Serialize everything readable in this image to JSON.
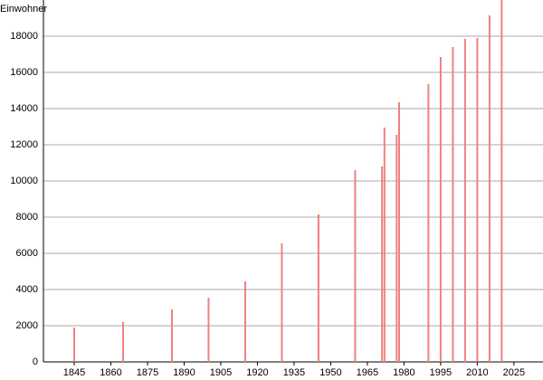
{
  "chart_data": {
    "type": "bar",
    "y_label": "Einwohner",
    "x": [
      1845,
      1865,
      1885,
      1900,
      1915,
      1930,
      1945,
      1960,
      1971,
      1972,
      1977,
      1978,
      1990,
      1995,
      2000,
      2005,
      2010,
      2015,
      2020
    ],
    "values": [
      1900,
      2200,
      2900,
      3550,
      4450,
      6550,
      8150,
      10600,
      10800,
      12950,
      12550,
      14350,
      15350,
      16850,
      17400,
      17850,
      17900,
      19150,
      20000
    ],
    "color": "#f08080",
    "xlim": [
      1832.4,
      2036.9
    ],
    "xticks": [
      1845,
      1860,
      1875,
      1890,
      1905,
      1920,
      1935,
      1950,
      1965,
      1980,
      1995,
      2010,
      2025
    ],
    "ylim": [
      0,
      20000
    ],
    "yticks": [
      0,
      2000,
      4000,
      6000,
      8000,
      10000,
      12000,
      14000,
      16000,
      18000
    ],
    "grid": true
  }
}
